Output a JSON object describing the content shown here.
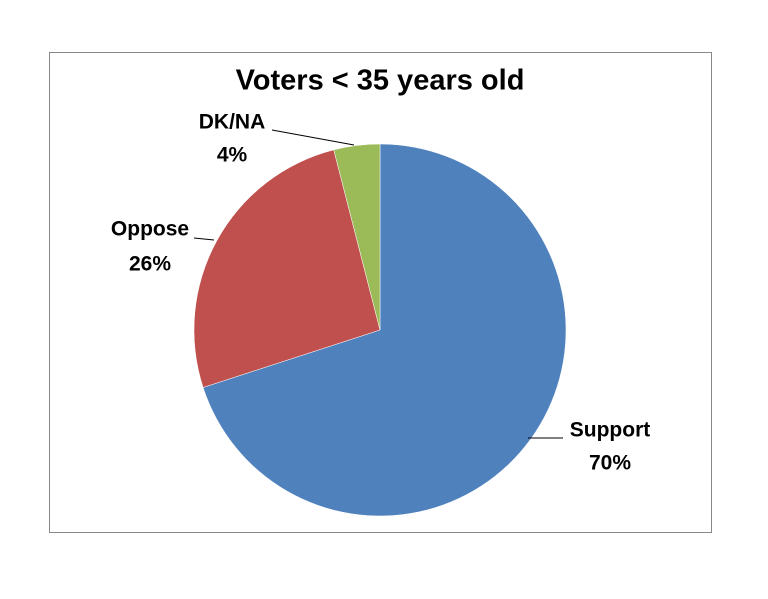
{
  "chart_data": {
    "type": "pie",
    "title": "Voters < 35 years old",
    "categories": [
      "Support",
      "Oppose",
      "DK/NA"
    ],
    "values": [
      70,
      26,
      4
    ],
    "value_labels": [
      "70%",
      "26%",
      "4%"
    ],
    "colors": [
      "#4f81bd",
      "#c0504d",
      "#9bbb59"
    ]
  }
}
